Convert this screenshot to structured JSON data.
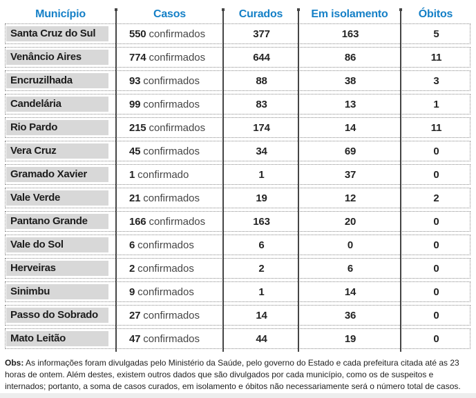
{
  "chart_data": {
    "type": "table",
    "columns": [
      "Município",
      "Casos",
      "Curados",
      "Em isolamento",
      "Óbitos"
    ],
    "rows": [
      {
        "municipio": "Santa Cruz do Sul",
        "casos": 550,
        "casos_suffix": "confirmados",
        "curados": 377,
        "em_isolamento": 163,
        "obitos": 5
      },
      {
        "municipio": "Venâncio Aires",
        "casos": 774,
        "casos_suffix": "confirmados",
        "curados": 644,
        "em_isolamento": 86,
        "obitos": 11
      },
      {
        "municipio": "Encruzilhada",
        "casos": 93,
        "casos_suffix": "confirmados",
        "curados": 88,
        "em_isolamento": 38,
        "obitos": 3
      },
      {
        "municipio": "Candelária",
        "casos": 99,
        "casos_suffix": "confirmados",
        "curados": 83,
        "em_isolamento": 13,
        "obitos": 1
      },
      {
        "municipio": "Rio Pardo",
        "casos": 215,
        "casos_suffix": "confirmados",
        "curados": 174,
        "em_isolamento": 14,
        "obitos": 11
      },
      {
        "municipio": "Vera Cruz",
        "casos": 45,
        "casos_suffix": "confirmados",
        "curados": 34,
        "em_isolamento": 69,
        "obitos": 0
      },
      {
        "municipio": "Gramado Xavier",
        "casos": 1,
        "casos_suffix": "confirmado",
        "curados": 1,
        "em_isolamento": 37,
        "obitos": 0
      },
      {
        "municipio": "Vale Verde",
        "casos": 21,
        "casos_suffix": "confirmados",
        "curados": 19,
        "em_isolamento": 12,
        "obitos": 2
      },
      {
        "municipio": "Pantano Grande",
        "casos": 166,
        "casos_suffix": "confirmados",
        "curados": 163,
        "em_isolamento": 20,
        "obitos": 0
      },
      {
        "municipio": "Vale do Sol",
        "casos": 6,
        "casos_suffix": "confirmados",
        "curados": 6,
        "em_isolamento": 0,
        "obitos": 0
      },
      {
        "municipio": "Herveiras",
        "casos": 2,
        "casos_suffix": "confirmados",
        "curados": 2,
        "em_isolamento": 6,
        "obitos": 0
      },
      {
        "municipio": "Sinimbu",
        "casos": 9,
        "casos_suffix": "confirmados",
        "curados": 1,
        "em_isolamento": 14,
        "obitos": 0
      },
      {
        "municipio": "Passo do Sobrado",
        "casos": 27,
        "casos_suffix": "confirmados",
        "curados": 14,
        "em_isolamento": 36,
        "obitos": 0
      },
      {
        "municipio": "Mato Leitão",
        "casos": 47,
        "casos_suffix": "confirmados",
        "curados": 44,
        "em_isolamento": 19,
        "obitos": 0
      }
    ],
    "layout_hints": {
      "grid": "dotted row boxes, solid column divider lines with top caps",
      "legend": "none"
    }
  },
  "footer": {
    "obs_label": "Obs:",
    "obs_text": "As informações foram divulgadas pelo Ministério da Saúde, pelo governo do Estado e cada prefeitura citada até as 23 horas de ontem. Além destes, existem outros dados que são divulgados por cada município, como os de suspeitos e internados; portanto, a soma de casos curados, em isolamento e óbitos não necessariamente será o número total de casos."
  },
  "colors": {
    "header_blue": "#1580c7",
    "municipality_plate_bg": "#d8d8d8",
    "divider_line": "#454545",
    "dotted_border": "#888888",
    "value_text": "#232323",
    "bottom_strip": "#ededed"
  }
}
